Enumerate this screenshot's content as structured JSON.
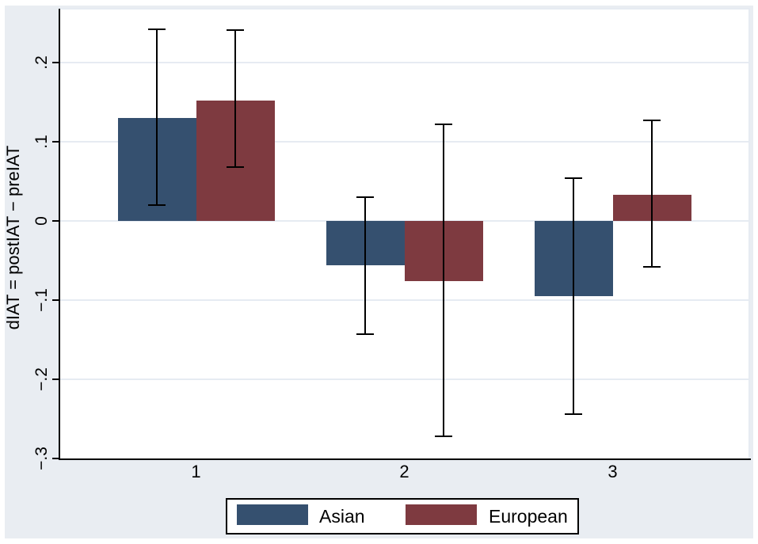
{
  "chart_data": {
    "type": "bar",
    "title": "",
    "xlabel": "",
    "ylabel": "dIAT = postIAT − preIAT",
    "categories": [
      "1",
      "2",
      "3"
    ],
    "series": [
      {
        "name": "Asian",
        "color": "#35506f",
        "values": [
          0.13,
          -0.056,
          -0.095
        ],
        "ci_low": [
          0.02,
          -0.143,
          -0.244
        ],
        "ci_high": [
          0.242,
          0.03,
          0.054
        ]
      },
      {
        "name": "European",
        "color": "#7e3a40",
        "values": [
          0.152,
          -0.076,
          0.033
        ],
        "ci_low": [
          0.068,
          -0.272,
          -0.058
        ],
        "ci_high": [
          0.241,
          0.122,
          0.127
        ]
      }
    ],
    "error_bars": true,
    "ytick_labels": [
      ".2",
      ".1",
      "0",
      "−.1",
      "−.2",
      "−.3"
    ],
    "ytick_values": [
      0.2,
      0.1,
      0.0,
      -0.1,
      -0.2,
      -0.3
    ],
    "ylim": [
      -0.3015,
      0.2675
    ],
    "grid": true,
    "legend_position": "bottom-center",
    "colors": {
      "plot_background": "#ffffff",
      "outer_background": "#e9edf2",
      "gridline": "#e6ebf2",
      "axis": "#000000"
    }
  }
}
